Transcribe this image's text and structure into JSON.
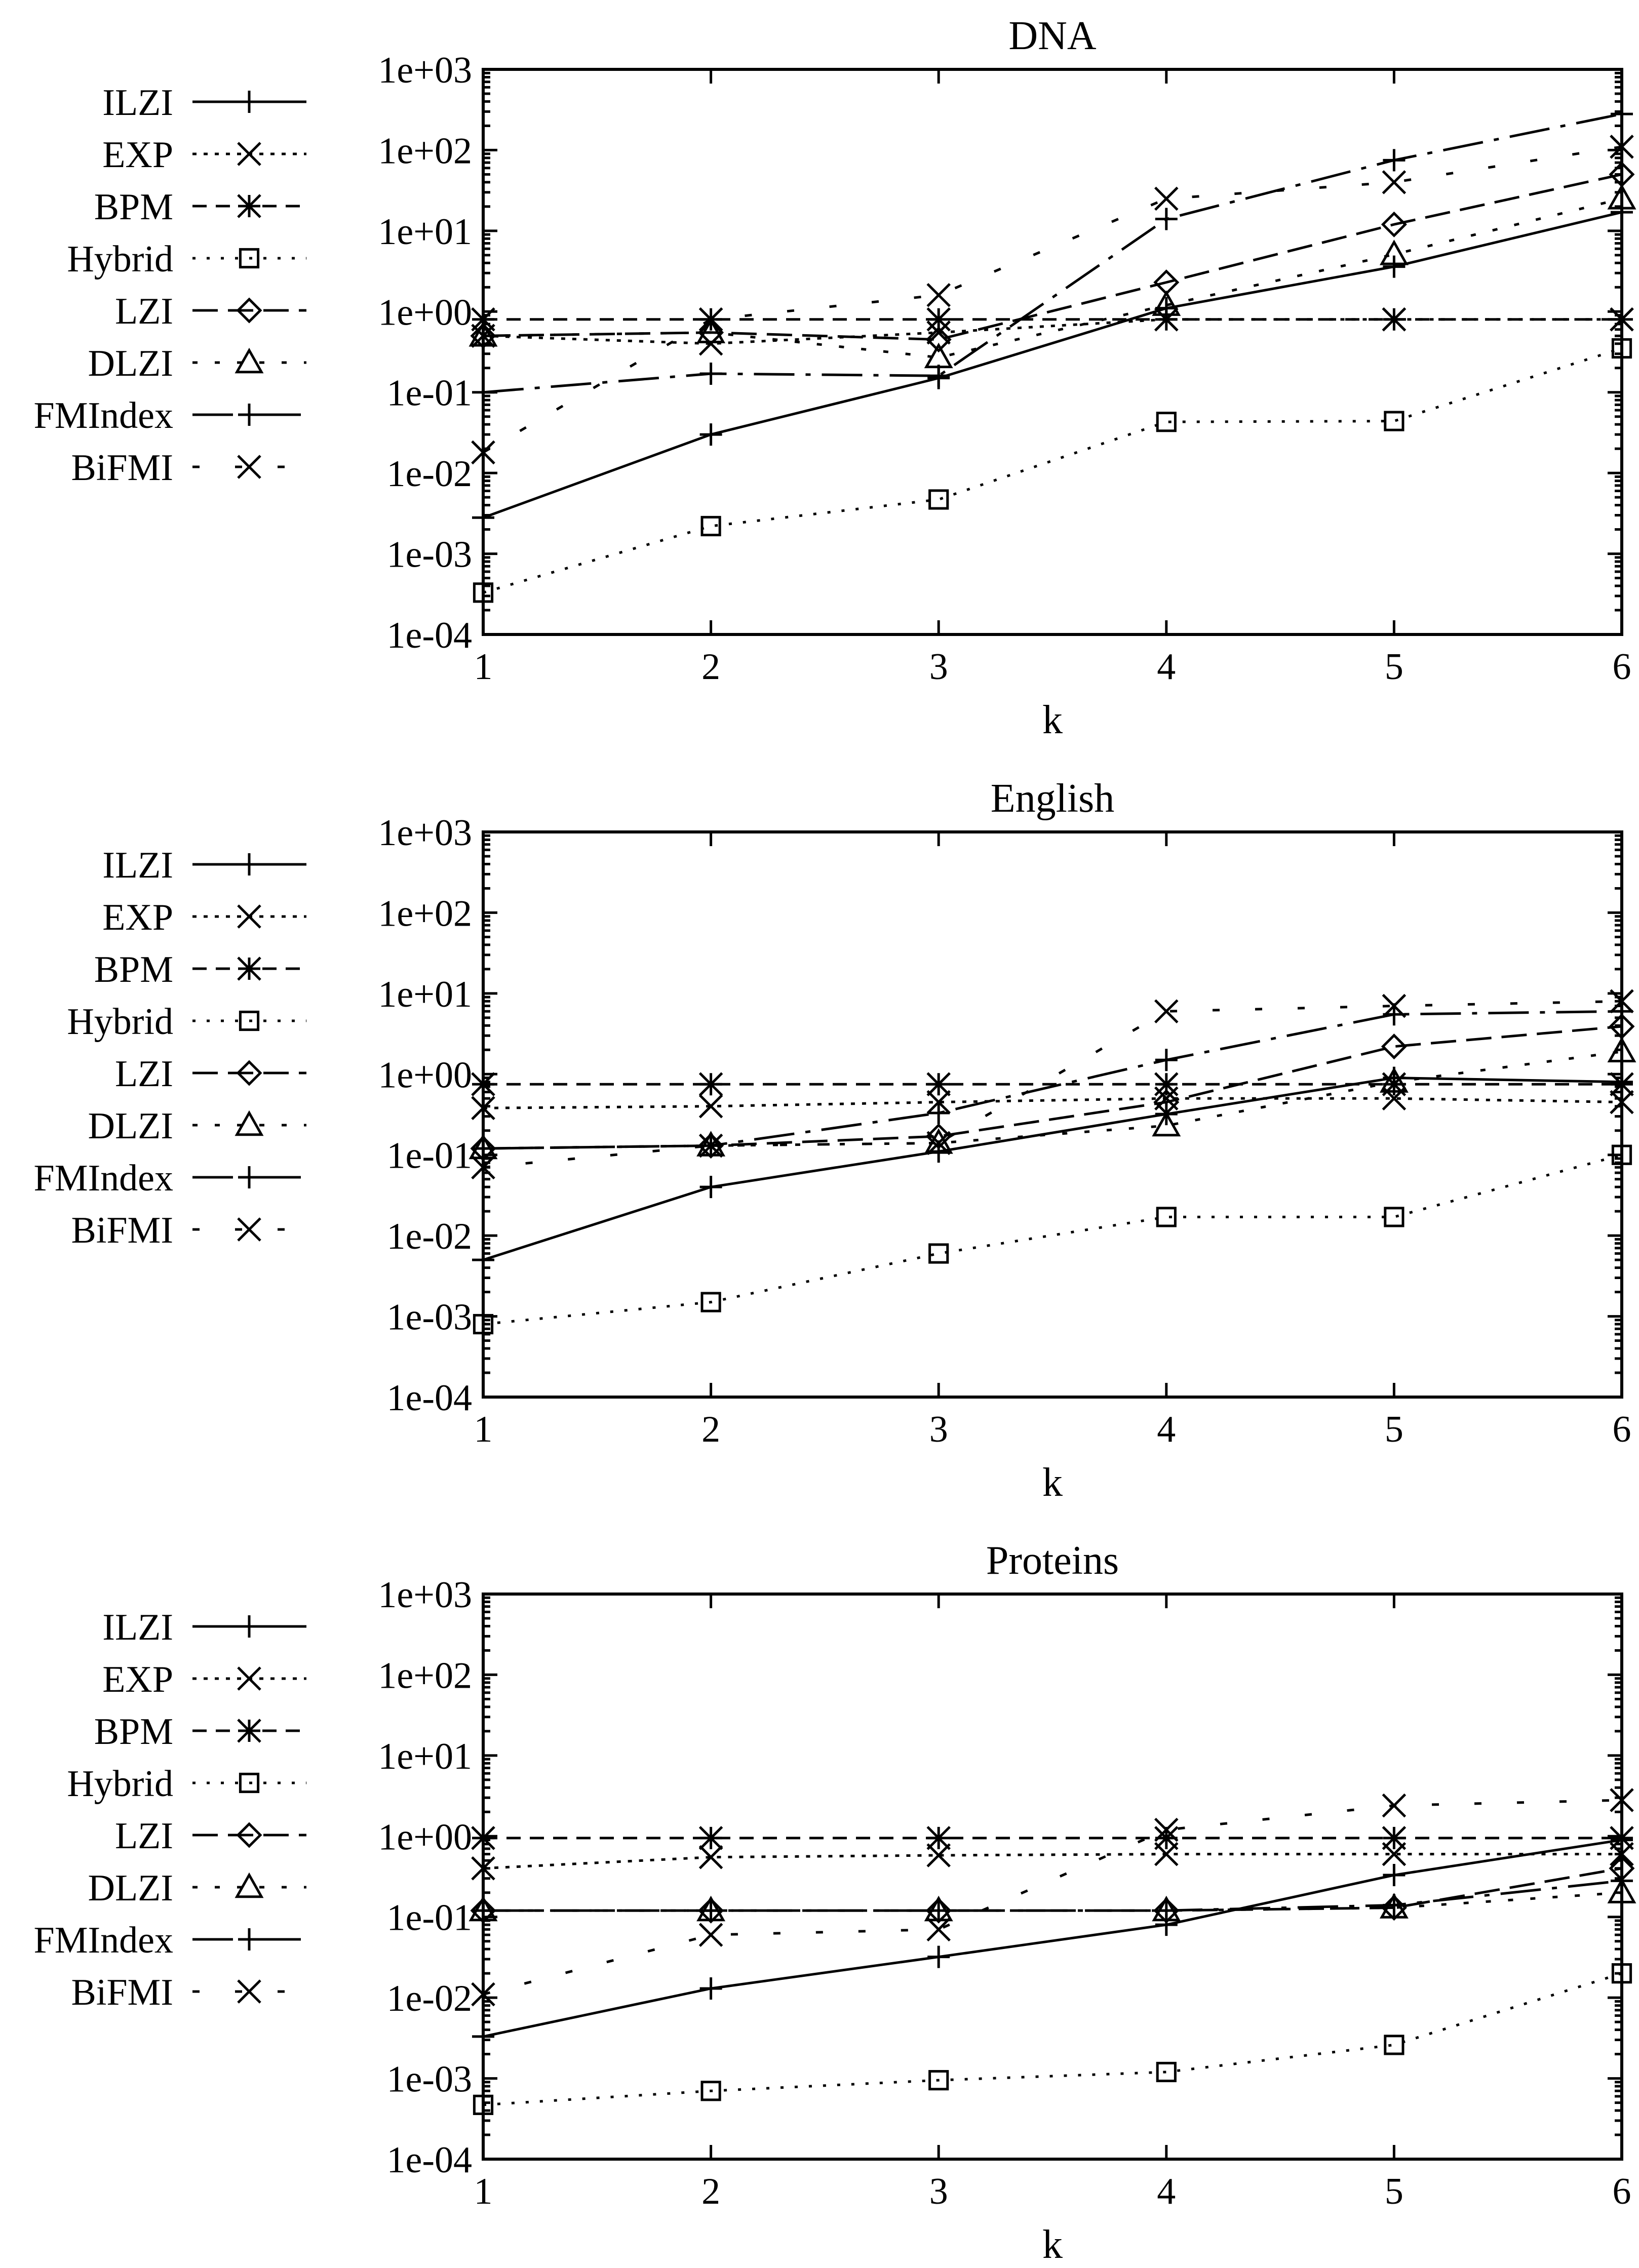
{
  "chart_data": [
    {
      "type": "line",
      "title": "DNA",
      "xlabel": "k",
      "ylabel": "",
      "yscale": "log",
      "ylim": [
        0.0001,
        1000
      ],
      "x": [
        1,
        2,
        3,
        4,
        5,
        6
      ],
      "xtick_labels": [
        "1",
        "2",
        "3",
        "4",
        "5",
        "6"
      ],
      "ytick_labels": [
        "1e-04",
        "1e-03",
        "1e-02",
        "1e-01",
        "1e+00",
        "1e+01",
        "1e+02",
        "1e+03"
      ],
      "legend_position": "left",
      "series": [
        {
          "name": "ILZI",
          "values": [
            0.0028,
            0.03,
            0.15,
            1.1,
            3.6,
            17
          ],
          "dash": "",
          "marker": "plus"
        },
        {
          "name": "EXP",
          "values": [
            0.5,
            0.4,
            0.55,
            0.8,
            0.8,
            0.8
          ],
          "dash": "8 14",
          "marker": "x"
        },
        {
          "name": "BPM",
          "values": [
            0.8,
            0.8,
            0.8,
            0.8,
            0.8,
            0.8
          ],
          "dash": "28 18",
          "marker": "star"
        },
        {
          "name": "Hybrid",
          "values": [
            0.00033,
            0.0022,
            0.0047,
            0.043,
            0.044,
            0.35
          ],
          "dash": "6 22",
          "marker": "square"
        },
        {
          "name": "LZI",
          "values": [
            0.5,
            0.55,
            0.45,
            2.3,
            12,
            50
          ],
          "dash": "50 20",
          "marker": "diamond"
        },
        {
          "name": "DLZI",
          "values": [
            0.5,
            0.55,
            0.27,
            1.2,
            5.1,
            25
          ],
          "dash": "10 34",
          "marker": "triangle"
        },
        {
          "name": "FMIndex",
          "values": [
            0.1,
            0.17,
            0.16,
            14,
            75,
            280
          ],
          "dash": "80 22 10 22",
          "marker": "plus"
        },
        {
          "name": "BiFMI",
          "values": [
            0.018,
            0.8,
            1.6,
            25,
            40,
            110
          ],
          "dash": "14 70",
          "marker": "x"
        }
      ]
    },
    {
      "type": "line",
      "title": "English",
      "xlabel": "k",
      "ylabel": "",
      "yscale": "log",
      "ylim": [
        0.0001,
        1000
      ],
      "x": [
        1,
        2,
        3,
        4,
        5,
        6
      ],
      "xtick_labels": [
        "1",
        "2",
        "3",
        "4",
        "5",
        "6"
      ],
      "ytick_labels": [
        "1e-04",
        "1e-03",
        "1e-02",
        "1e-01",
        "1e+00",
        "1e+01",
        "1e+02",
        "1e+03"
      ],
      "legend_position": "left",
      "series": [
        {
          "name": "ILZI",
          "values": [
            0.005,
            0.04,
            0.11,
            0.32,
            0.9,
            0.8
          ],
          "dash": "",
          "marker": "plus"
        },
        {
          "name": "EXP",
          "values": [
            0.38,
            0.4,
            0.45,
            0.5,
            0.5,
            0.45
          ],
          "dash": "8 14",
          "marker": "x"
        },
        {
          "name": "BPM",
          "values": [
            0.75,
            0.75,
            0.75,
            0.75,
            0.75,
            0.75
          ],
          "dash": "28 18",
          "marker": "star"
        },
        {
          "name": "Hybrid",
          "values": [
            0.0008,
            0.0015,
            0.006,
            0.017,
            0.017,
            0.1
          ],
          "dash": "6 22",
          "marker": "square"
        },
        {
          "name": "LZI",
          "values": [
            0.12,
            0.13,
            0.17,
            0.45,
            2.2,
            3.9
          ],
          "dash": "50 20",
          "marker": "diamond"
        },
        {
          "name": "DLZI",
          "values": [
            0.12,
            0.13,
            0.14,
            0.23,
            0.8,
            1.9
          ],
          "dash": "10 34",
          "marker": "triangle"
        },
        {
          "name": "FMIndex",
          "values": [
            0.12,
            0.13,
            0.33,
            1.5,
            5.5,
            6
          ],
          "dash": "80 22 10 22",
          "marker": "plus"
        },
        {
          "name": "BiFMI",
          "values": [
            0.07,
            0.13,
            0.14,
            6,
            7,
            8
          ],
          "dash": "14 70",
          "marker": "x"
        }
      ]
    },
    {
      "type": "line",
      "title": "Proteins",
      "xlabel": "k",
      "ylabel": "",
      "yscale": "log",
      "ylim": [
        0.0001,
        1000
      ],
      "x": [
        1,
        2,
        3,
        4,
        5,
        6
      ],
      "xtick_labels": [
        "1",
        "2",
        "3",
        "4",
        "5",
        "6"
      ],
      "ytick_labels": [
        "1e-04",
        "1e-03",
        "1e-02",
        "1e-01",
        "1e+00",
        "1e+01",
        "1e+02",
        "1e+03"
      ],
      "legend_position": "left",
      "series": [
        {
          "name": "ILZI",
          "values": [
            0.0033,
            0.013,
            0.032,
            0.08,
            0.33,
            0.9
          ],
          "dash": "",
          "marker": "plus"
        },
        {
          "name": "EXP",
          "values": [
            0.4,
            0.55,
            0.58,
            0.6,
            0.6,
            0.6
          ],
          "dash": "8 14",
          "marker": "x"
        },
        {
          "name": "BPM",
          "values": [
            0.95,
            0.95,
            0.95,
            0.95,
            0.95,
            0.95
          ],
          "dash": "28 18",
          "marker": "star"
        },
        {
          "name": "Hybrid",
          "values": [
            0.00047,
            0.0007,
            0.00095,
            0.0012,
            0.0026,
            0.02
          ],
          "dash": "6 22",
          "marker": "square"
        },
        {
          "name": "LZI",
          "values": [
            0.12,
            0.12,
            0.12,
            0.12,
            0.13,
            0.4
          ],
          "dash": "50 20",
          "marker": "diamond"
        },
        {
          "name": "DLZI",
          "values": [
            0.12,
            0.12,
            0.12,
            0.12,
            0.13,
            0.2
          ],
          "dash": "10 34",
          "marker": "triangle"
        },
        {
          "name": "FMIndex",
          "values": [
            0.12,
            0.12,
            0.12,
            0.12,
            0.14,
            0.28
          ],
          "dash": "80 22 10 22",
          "marker": "plus"
        },
        {
          "name": "BiFMI",
          "values": [
            0.011,
            0.06,
            0.07,
            1.2,
            2.4,
            2.8
          ],
          "dash": "14 70",
          "marker": "x"
        }
      ]
    }
  ]
}
